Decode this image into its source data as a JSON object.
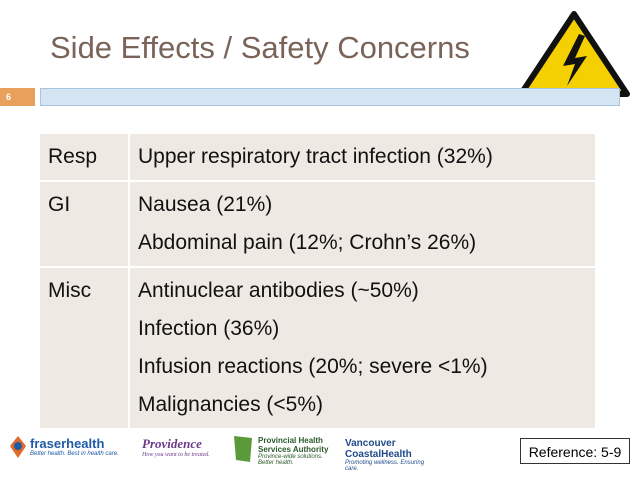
{
  "header": {
    "title": "Side Effects / Safety Concerns",
    "slide_number": "6"
  },
  "table": {
    "rows": [
      {
        "label": "Resp",
        "items": [
          "Upper respiratory tract infection (32%)"
        ]
      },
      {
        "label": "GI",
        "items": [
          "Nausea (21%)",
          "Abdominal pain (12%; Crohn’s 26%)"
        ]
      },
      {
        "label": "Misc",
        "items": [
          "Antinuclear antibodies (~50%)",
          "Infection (36%)",
          "Infusion reactions (20%; severe <1%)",
          "Malignancies (<5%)"
        ]
      }
    ]
  },
  "footer": {
    "logos": [
      {
        "name": "fraserhealth",
        "tagline": "Better health. Best in health care."
      },
      {
        "name": "Providence",
        "tagline": "How you want to be treated."
      },
      {
        "name": "Provincial Health Services Authority",
        "tagline": "Province-wide solutions. Better health."
      },
      {
        "name": "Vancouver CoastalHealth",
        "tagline": "Promoting wellness. Ensuring care."
      }
    ],
    "reference": "Reference: 5-9"
  }
}
